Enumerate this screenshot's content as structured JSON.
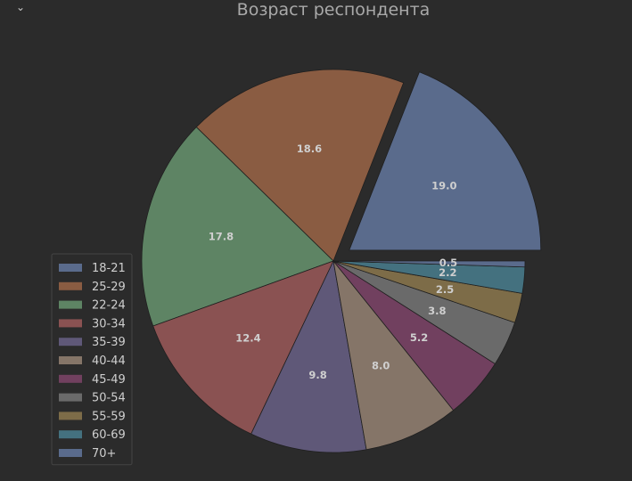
{
  "ui": {
    "collapse_icon": "chevron-down-icon",
    "collapse_glyph": "⌄"
  },
  "chart_data": {
    "type": "pie",
    "title": "Возраст респондента",
    "categories": [
      "18-21",
      "25-29",
      "22-24",
      "30-34",
      "35-39",
      "40-44",
      "45-49",
      "50-54",
      "55-59",
      "60-69",
      "70+"
    ],
    "values": [
      19.0,
      18.6,
      17.8,
      12.4,
      9.8,
      8.0,
      5.2,
      3.8,
      2.5,
      2.2,
      0.5
    ],
    "labels": [
      "19.0",
      "18.6",
      "17.8",
      "12.4",
      "9.8",
      "8.0",
      "5.2",
      "3.8",
      "2.5",
      "2.2",
      "0.5"
    ],
    "colors": [
      "#5a6b8c",
      "#8a5c42",
      "#5e8464",
      "#8a5252",
      "#5f5878",
      "#857568",
      "#71405f",
      "#6a6a6a",
      "#7d6c48",
      "#44717f",
      "#5a6b8c"
    ],
    "explode": [
      0.1,
      0,
      0,
      0,
      0,
      0,
      0,
      0,
      0,
      0,
      0
    ],
    "start_angle_deg": 0,
    "direction": "counterclockwise",
    "legend_position": "lower-left"
  }
}
